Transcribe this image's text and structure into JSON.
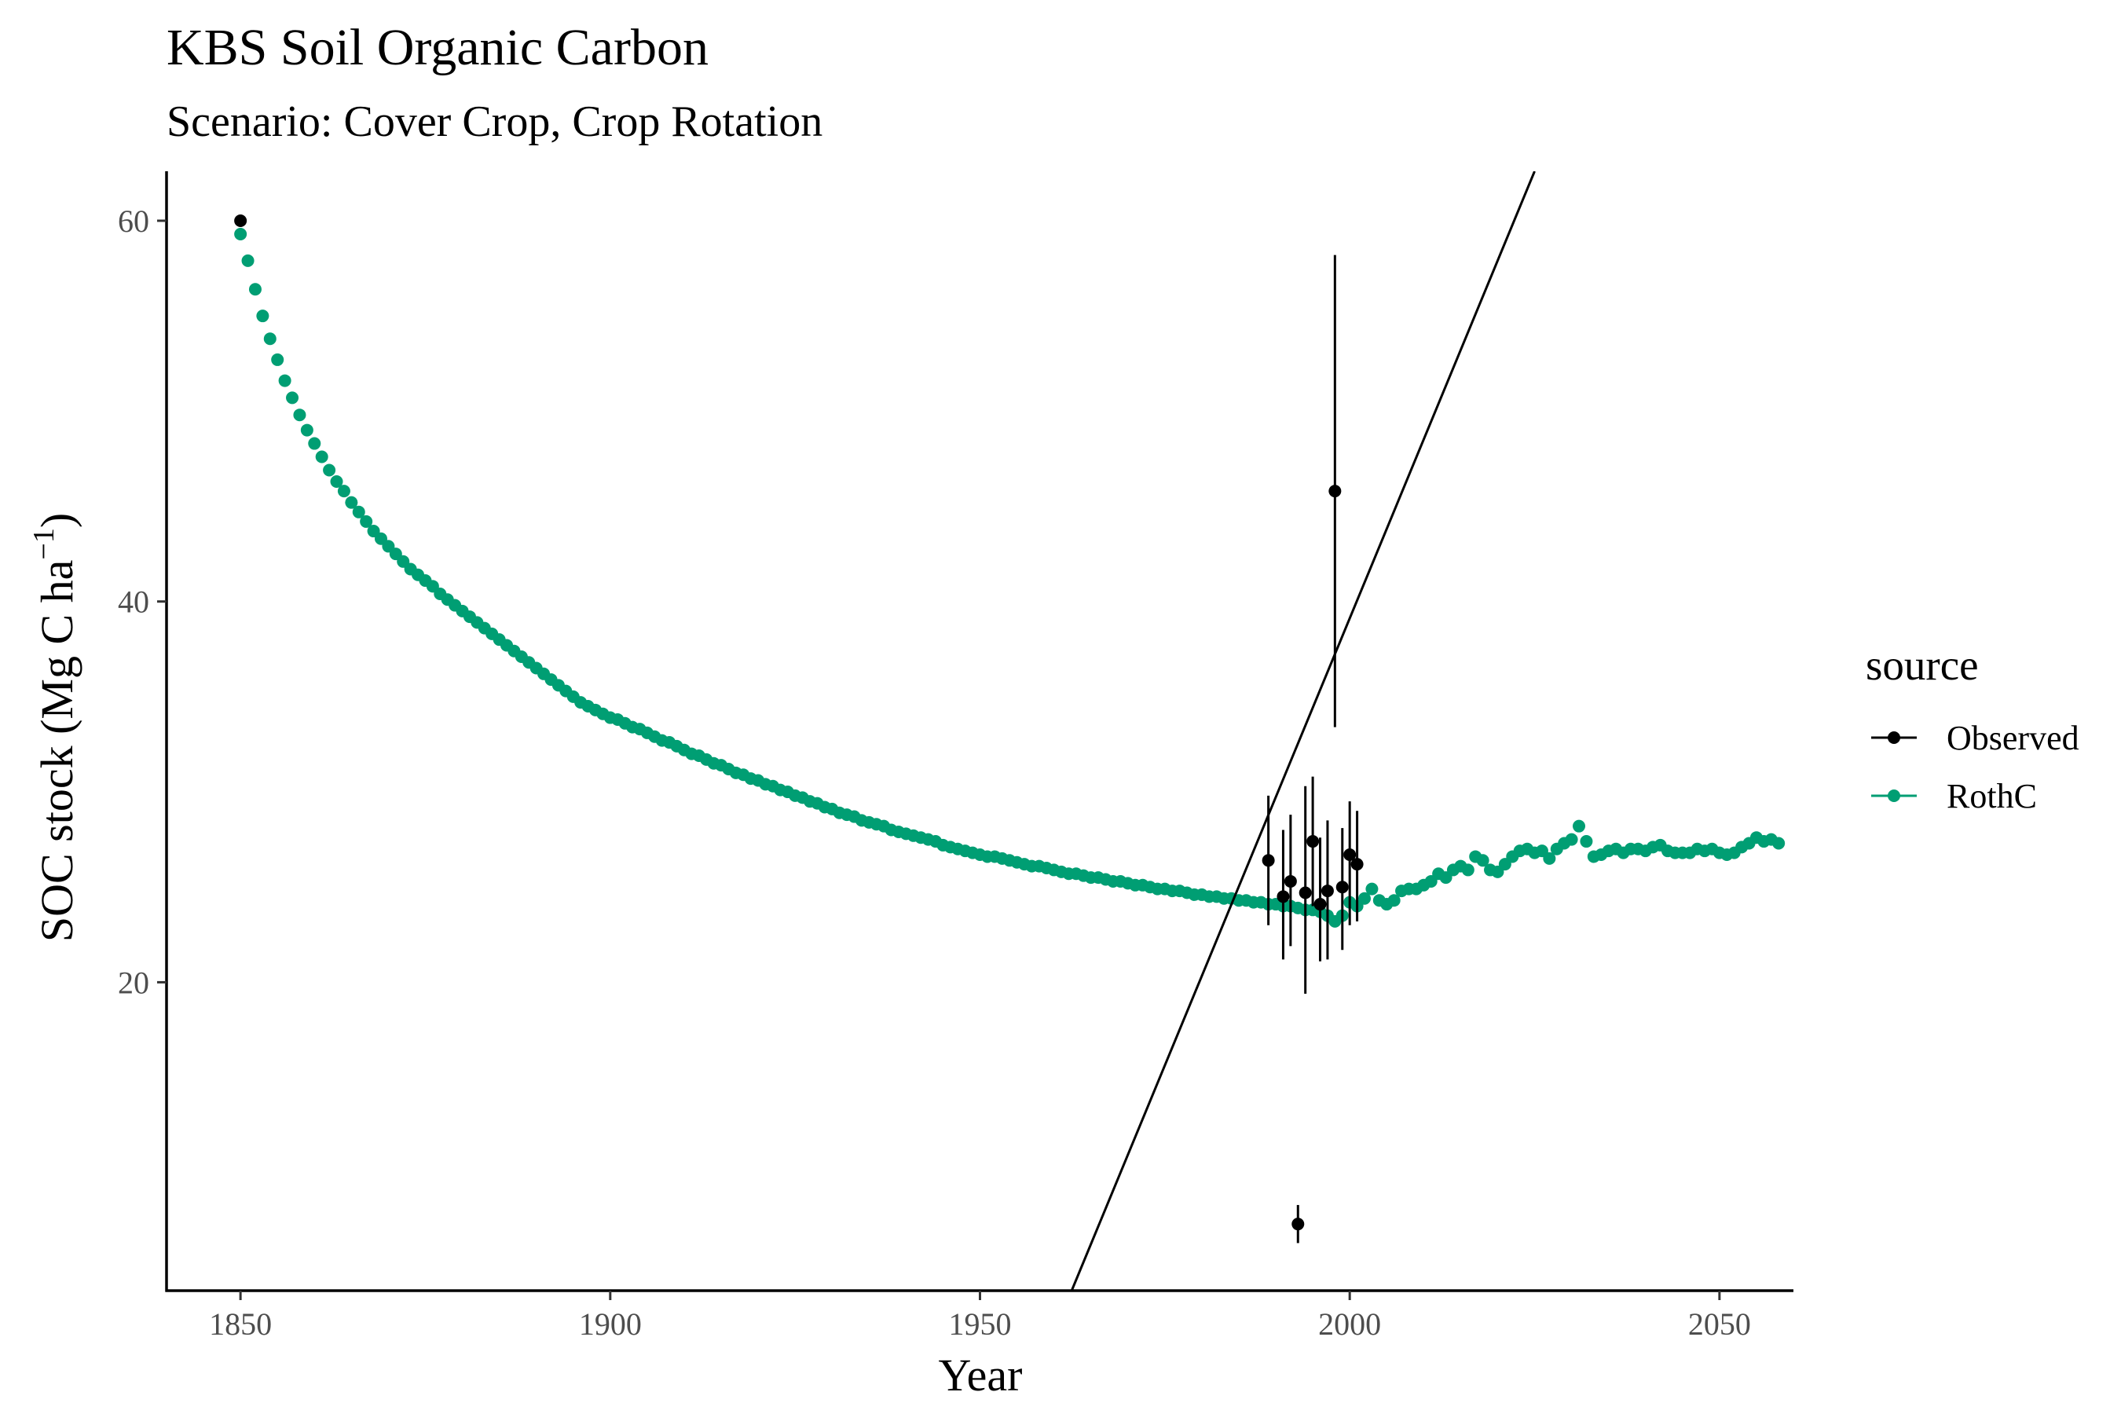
{
  "chart_data": {
    "type": "scatter",
    "title": "KBS Soil Organic Carbon",
    "subtitle": "Scenario: Cover Crop, Crop Rotation",
    "xlabel": "Year",
    "ylabel_main": "SOC stock (Mg C ha",
    "ylabel_sup": "−1",
    "ylabel_close": ")",
    "xlim": [
      1840,
      2060
    ],
    "ylim": [
      3.8,
      62.6
    ],
    "xticks": [
      1850,
      1900,
      1950,
      2000,
      2050
    ],
    "yticks": [
      20,
      40,
      60
    ],
    "grid": false,
    "legend": {
      "title": "source",
      "placement": "right",
      "entries": [
        {
          "label": "Observed",
          "color": "#000000"
        },
        {
          "label": "RothC",
          "color": "#009E73"
        }
      ]
    },
    "colors": {
      "observed": "#000000",
      "rothc": "#009E73",
      "axis": "#000000"
    },
    "series": [
      {
        "name": "Observed",
        "type": "pointrange",
        "points": [
          {
            "x": 1850,
            "y": 60.0,
            "ymin": 60.0,
            "ymax": 60.0
          },
          {
            "x": 1989,
            "y": 26.4,
            "ymin": 23.0,
            "ymax": 29.8
          },
          {
            "x": 1991,
            "y": 24.5,
            "ymin": 21.2,
            "ymax": 28.0
          },
          {
            "x": 1992,
            "y": 25.3,
            "ymin": 21.9,
            "ymax": 28.8
          },
          {
            "x": 1993,
            "y": 7.3,
            "ymin": 6.3,
            "ymax": 8.3
          },
          {
            "x": 1994,
            "y": 24.7,
            "ymin": 19.4,
            "ymax": 30.3
          },
          {
            "x": 1995,
            "y": 27.4,
            "ymin": 24.0,
            "ymax": 30.8
          },
          {
            "x": 1996,
            "y": 24.1,
            "ymin": 21.1,
            "ymax": 27.6
          },
          {
            "x": 1997,
            "y": 24.8,
            "ymin": 21.2,
            "ymax": 28.5
          },
          {
            "x": 1998,
            "y": 45.8,
            "ymin": 33.4,
            "ymax": 58.2
          },
          {
            "x": 1999,
            "y": 25.0,
            "ymin": 21.7,
            "ymax": 28.1
          },
          {
            "x": 2000,
            "y": 26.7,
            "ymin": 23.0,
            "ymax": 29.5
          },
          {
            "x": 2001,
            "y": 26.2,
            "ymin": 23.2,
            "ymax": 29.0
          }
        ]
      },
      {
        "name": "RothC",
        "type": "scatter",
        "start_year": 1850,
        "end_year": 2050,
        "values": [
          59.3,
          57.9,
          56.4,
          55.0,
          53.8,
          52.7,
          51.6,
          50.7,
          49.8,
          49.0,
          48.3,
          47.6,
          46.9,
          46.3,
          45.8,
          45.2,
          44.7,
          44.2,
          43.7,
          43.3,
          42.9,
          42.5,
          42.1,
          41.7,
          41.4,
          41.1,
          40.8,
          40.4,
          40.1,
          39.8,
          39.5,
          39.2,
          38.9,
          38.6,
          38.3,
          38.0,
          37.7,
          37.4,
          37.1,
          36.8,
          36.5,
          36.2,
          35.9,
          35.6,
          35.3,
          35.0,
          34.7,
          34.5,
          34.3,
          34.1,
          33.9,
          33.8,
          33.6,
          33.4,
          33.3,
          33.1,
          32.9,
          32.7,
          32.6,
          32.4,
          32.2,
          32.0,
          31.9,
          31.7,
          31.5,
          31.4,
          31.2,
          31.0,
          30.9,
          30.7,
          30.6,
          30.4,
          30.3,
          30.1,
          30.0,
          29.8,
          29.7,
          29.5,
          29.4,
          29.2,
          29.1,
          28.9,
          28.8,
          28.7,
          28.5,
          28.4,
          28.3,
          28.2,
          28.0,
          27.9,
          27.8,
          27.7,
          27.6,
          27.5,
          27.4,
          27.2,
          27.1,
          27.0,
          26.9,
          26.8,
          26.7,
          26.6,
          26.6,
          26.5,
          26.4,
          26.3,
          26.2,
          26.1,
          26.1,
          26.0,
          25.9,
          25.8,
          25.7,
          25.7,
          25.6,
          25.5,
          25.5,
          25.4,
          25.3,
          25.3,
          25.2,
          25.1,
          25.1,
          25.0,
          24.9,
          24.9,
          24.8,
          24.8,
          24.7,
          24.6,
          24.6,
          24.5,
          24.5,
          24.4,
          24.4,
          24.3,
          24.3,
          24.2,
          24.2,
          24.1,
          24.1,
          24.0,
          24.0,
          23.9,
          23.8,
          23.8,
          23.7,
          23.5,
          23.2,
          23.5,
          24.2,
          24.0,
          24.4,
          24.9,
          24.3,
          24.1,
          24.3,
          24.8,
          24.9,
          24.9,
          25.1,
          25.3,
          25.7,
          25.5,
          25.9,
          26.1,
          25.9,
          26.6,
          26.4,
          25.9,
          25.8,
          26.2,
          26.6,
          26.9,
          27.0,
          26.8,
          26.9,
          26.5,
          27.0,
          27.3,
          27.5,
          28.2,
          27.4,
          26.6,
          26.7,
          26.9,
          27.0,
          26.8,
          27.0,
          27.0,
          26.9,
          27.1,
          27.2,
          26.9,
          26.8,
          26.8,
          26.8,
          27.0,
          26.9,
          27.0,
          26.8,
          26.7,
          26.8,
          27.1,
          27.3,
          27.6,
          27.4,
          27.5,
          27.3
        ]
      },
      {
        "name": "",
        "type": "line",
        "x": [
          1962.4,
          2025.0
        ],
        "y": [
          3.8,
          62.6
        ]
      }
    ]
  }
}
